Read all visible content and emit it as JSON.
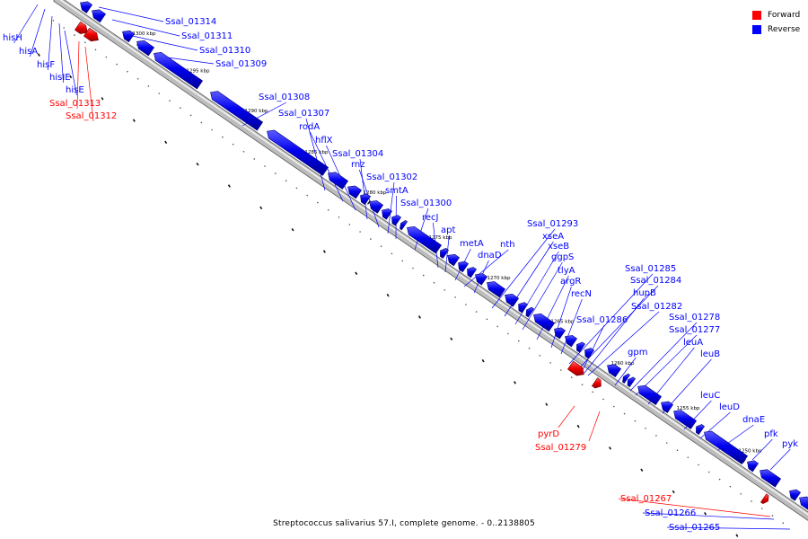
{
  "legend": {
    "forward_label": "Forward",
    "reverse_label": "Reverse",
    "forward_color": "#ff0000",
    "reverse_color": "#0000ff"
  },
  "caption": "Streptococcus salivarius 57.I, complete genome. - 0..2138805",
  "ruler_unit": "kbp",
  "ruler_ticks_kbp": [
    1300,
    1295,
    1290,
    1285,
    1280,
    1275,
    1270,
    1265,
    1260,
    1255,
    1250
  ],
  "genes": [
    {
      "name": "hisH",
      "strand": "reverse"
    },
    {
      "name": "hisA",
      "strand": "reverse"
    },
    {
      "name": "hisF",
      "strand": "reverse"
    },
    {
      "name": "hisIE",
      "strand": "reverse"
    },
    {
      "name": "hisE",
      "strand": "reverse"
    },
    {
      "name": "Ssal_01313",
      "strand": "forward"
    },
    {
      "name": "Ssal_01312",
      "strand": "forward"
    },
    {
      "name": "Ssal_01314",
      "strand": "reverse"
    },
    {
      "name": "Ssal_01311",
      "strand": "reverse"
    },
    {
      "name": "Ssal_01310",
      "strand": "reverse"
    },
    {
      "name": "Ssal_01309",
      "strand": "reverse"
    },
    {
      "name": "Ssal_01308",
      "strand": "reverse"
    },
    {
      "name": "Ssal_01307",
      "strand": "reverse"
    },
    {
      "name": "rodA",
      "strand": "reverse"
    },
    {
      "name": "hflX",
      "strand": "reverse"
    },
    {
      "name": "Ssal_01304",
      "strand": "reverse"
    },
    {
      "name": "rnz",
      "strand": "reverse"
    },
    {
      "name": "Ssal_01302",
      "strand": "reverse"
    },
    {
      "name": "smtA",
      "strand": "reverse"
    },
    {
      "name": "Ssal_01300",
      "strand": "reverse"
    },
    {
      "name": "recJ",
      "strand": "reverse"
    },
    {
      "name": "apt",
      "strand": "reverse"
    },
    {
      "name": "metA",
      "strand": "reverse"
    },
    {
      "name": "nth",
      "strand": "reverse"
    },
    {
      "name": "dnaD",
      "strand": "reverse"
    },
    {
      "name": "Ssal_01293",
      "strand": "reverse"
    },
    {
      "name": "xseA",
      "strand": "reverse"
    },
    {
      "name": "xseB",
      "strand": "reverse"
    },
    {
      "name": "ggpS",
      "strand": "reverse"
    },
    {
      "name": "tlyA",
      "strand": "reverse"
    },
    {
      "name": "argR",
      "strand": "reverse"
    },
    {
      "name": "recN",
      "strand": "reverse"
    },
    {
      "name": "Ssal_01285",
      "strand": "reverse"
    },
    {
      "name": "Ssal_01284",
      "strand": "reverse"
    },
    {
      "name": "hupB",
      "strand": "reverse"
    },
    {
      "name": "Ssal_01282",
      "strand": "reverse"
    },
    {
      "name": "Ssal_01286",
      "strand": "reverse"
    },
    {
      "name": "Ssal_01278",
      "strand": "reverse"
    },
    {
      "name": "Ssal_01277",
      "strand": "reverse"
    },
    {
      "name": "leuA",
      "strand": "reverse"
    },
    {
      "name": "gpm",
      "strand": "reverse"
    },
    {
      "name": "leuB",
      "strand": "reverse"
    },
    {
      "name": "leuC",
      "strand": "reverse"
    },
    {
      "name": "leuD",
      "strand": "reverse"
    },
    {
      "name": "dnaE",
      "strand": "reverse"
    },
    {
      "name": "pfk",
      "strand": "reverse"
    },
    {
      "name": "pyk",
      "strand": "reverse"
    },
    {
      "name": "pyrD",
      "strand": "forward"
    },
    {
      "name": "Ssal_01279",
      "strand": "forward"
    },
    {
      "name": "Ssal_01267",
      "strand": "forward"
    },
    {
      "name": "Ssal_01266",
      "strand": "reverse"
    },
    {
      "name": "Ssal_01265",
      "strand": "reverse"
    }
  ]
}
